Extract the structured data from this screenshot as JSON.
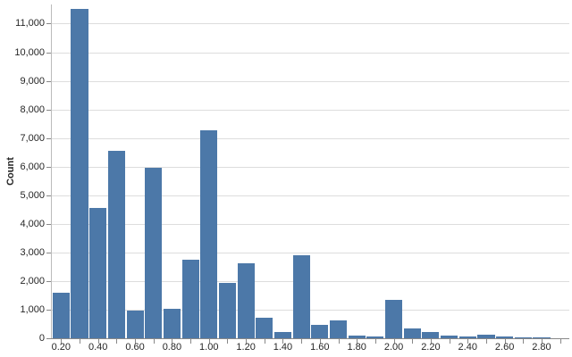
{
  "chart": {
    "colors": {
      "bar": "#4c78a8",
      "grid": "#dddddd",
      "axis_domain": "#888888",
      "tick": "#888888",
      "label": "#262626",
      "background": "#ffffff"
    }
  },
  "chart_data": {
    "type": "bar",
    "subtype": "histogram",
    "title": "",
    "xlabel": "",
    "ylabel": "Count",
    "bin_width": 0.1,
    "x": [
      0.2,
      0.3,
      0.4,
      0.5,
      0.6,
      0.7,
      0.8,
      0.9,
      1.0,
      1.1,
      1.2,
      1.3,
      1.4,
      1.5,
      1.6,
      1.7,
      1.8,
      1.9,
      2.0,
      2.1,
      2.2,
      2.3,
      2.4,
      2.5,
      2.6,
      2.7,
      2.8
    ],
    "values": [
      1600,
      11500,
      4570,
      6550,
      980,
      5950,
      1030,
      2760,
      7280,
      1950,
      2620,
      730,
      230,
      2900,
      470,
      615,
      95,
      50,
      1340,
      360,
      210,
      105,
      65,
      135,
      50,
      40,
      20
    ],
    "xlim": [
      0.15,
      2.95
    ],
    "ylim": [
      0,
      11670
    ],
    "grid": true,
    "legend": false,
    "y_ticks": [
      0,
      1000,
      2000,
      3000,
      4000,
      5000,
      6000,
      7000,
      8000,
      9000,
      10000,
      11000
    ],
    "y_tick_labels": [
      "0",
      "1,000",
      "2,000",
      "3,000",
      "4,000",
      "5,000",
      "6,000",
      "7,000",
      "8,000",
      "9,000",
      "10,000",
      "11,000"
    ],
    "x_major_ticks": [
      0.2,
      0.4,
      0.6,
      0.8,
      1.0,
      1.2,
      1.4,
      1.6,
      1.8,
      2.0,
      2.2,
      2.4,
      2.6,
      2.8
    ],
    "x_major_tick_labels": [
      "0.20",
      "0.40",
      "0.60",
      "0.80",
      "1.00",
      "1.20",
      "1.40",
      "1.60",
      "1.80",
      "2.00",
      "2.20",
      "2.40",
      "2.60",
      "2.80"
    ],
    "x_minor_tick_step": 0.1
  }
}
